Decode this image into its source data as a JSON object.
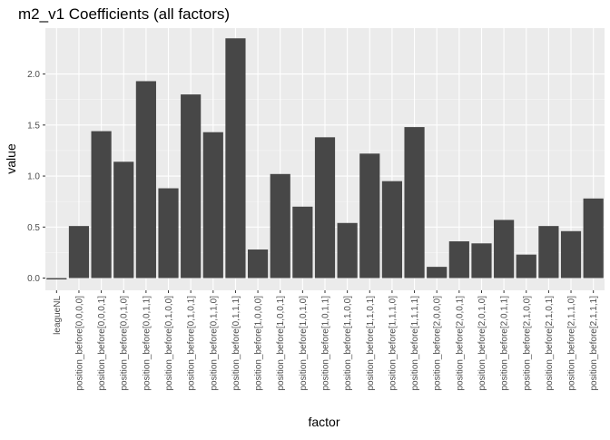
{
  "chart_data": {
    "type": "bar",
    "title": "m2_v1 Coefficients (all factors)",
    "xlabel": "factor",
    "ylabel": "value",
    "ylim": [
      -0.12,
      2.45
    ],
    "yticks": [
      0.0,
      0.5,
      1.0,
      1.5,
      2.0
    ],
    "ytick_labels": [
      "0.0",
      "0.5",
      "1.0",
      "1.5",
      "2.0"
    ],
    "grid": true,
    "bar_color": "#474747",
    "panel_color": "#ebebeb",
    "categories": [
      "leagueNL",
      "position_before[0,0,0,0]",
      "position_before[0,0,0,1]",
      "position_before[0,0,1,0]",
      "position_before[0,0,1,1]",
      "position_before[0,1,0,0]",
      "position_before[0,1,0,1]",
      "position_before[0,1,1,0]",
      "position_before[0,1,1,1]",
      "position_before[1,0,0,0]",
      "position_before[1,0,0,1]",
      "position_before[1,0,1,0]",
      "position_before[1,0,1,1]",
      "position_before[1,1,0,0]",
      "position_before[1,1,0,1]",
      "position_before[1,1,1,0]",
      "position_before[1,1,1,1]",
      "position_before[2,0,0,0]",
      "position_before[2,0,0,1]",
      "position_before[2,0,1,0]",
      "position_before[2,0,1,1]",
      "position_before[2,1,0,0]",
      "position_before[2,1,0,1]",
      "position_before[2,1,1,0]",
      "position_before[2,1,1,1]"
    ],
    "values": [
      -0.01,
      0.51,
      1.44,
      1.14,
      1.93,
      0.88,
      1.8,
      1.43,
      2.35,
      0.28,
      1.02,
      0.7,
      1.38,
      0.54,
      1.22,
      0.95,
      1.48,
      0.11,
      0.36,
      0.34,
      0.57,
      0.23,
      0.51,
      0.46,
      0.78
    ]
  }
}
